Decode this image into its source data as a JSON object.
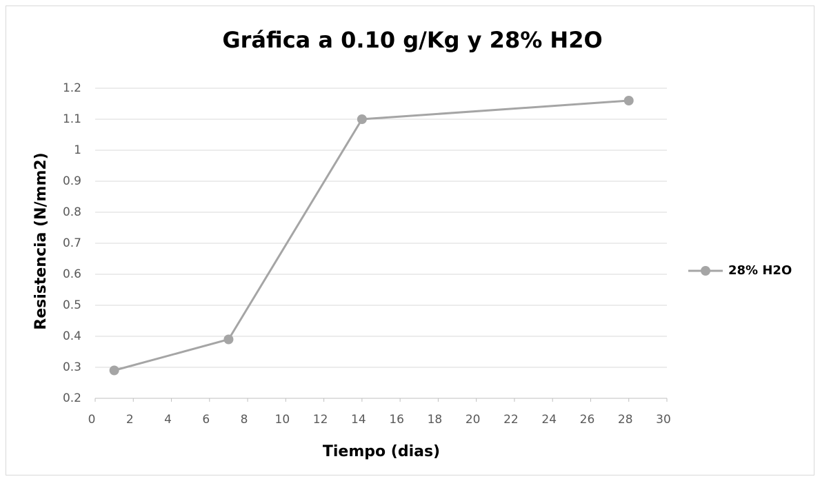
{
  "chart_data": {
    "type": "line",
    "title": "Gráfica a 0.10 g/Kg y 28% H2O",
    "xlabel": "Tiempo (dias)",
    "ylabel": "Resistencia (N/mm2)",
    "x": [
      1,
      7,
      14,
      28
    ],
    "series": [
      {
        "name": "28% H2O",
        "color": "#a5a5a5",
        "values": [
          0.29,
          0.39,
          1.1,
          1.16
        ]
      }
    ],
    "xlim": [
      0,
      30
    ],
    "xticks": [
      0,
      2,
      4,
      6,
      8,
      10,
      12,
      14,
      16,
      18,
      20,
      22,
      24,
      26,
      28,
      30
    ],
    "ylim": [
      0.2,
      1.2
    ],
    "yticks": [
      0.2,
      0.3,
      0.4,
      0.5,
      0.6,
      0.7,
      0.8,
      0.9,
      1,
      1.1,
      1.2
    ],
    "grid": true,
    "legend": "right"
  }
}
